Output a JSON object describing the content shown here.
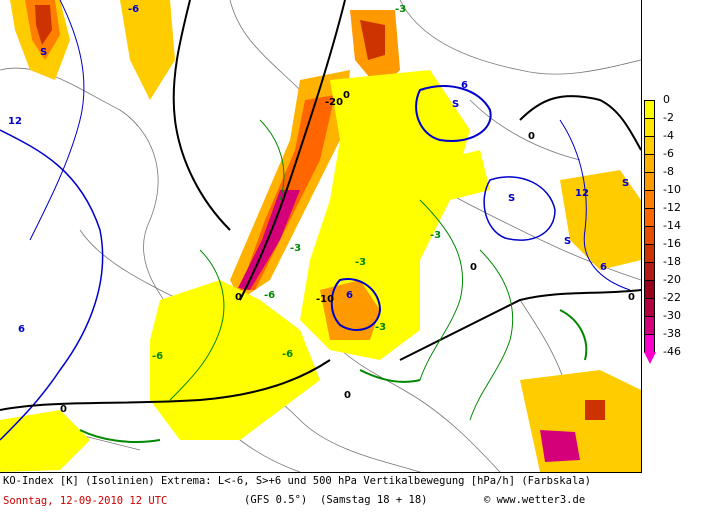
{
  "caption": {
    "line1": "KO-Index [K] (Isolinien) Extrema: L<-6, S>+6 und 500 hPa Vertikalbewegung [hPa/h] (Farbskala)",
    "date": "Sonntag, 12-09-2010  12 UTC",
    "model": "(GFS 0.5°)",
    "run": "(Samstag 18 + 18)",
    "credit": "© www.wetter3.de"
  },
  "legend": {
    "labels": [
      "0",
      "-2",
      "-4",
      "-6",
      "-8",
      "-10",
      "-12",
      "-14",
      "-16",
      "-18",
      "-20",
      "-22",
      "-30",
      "-38",
      "-46"
    ],
    "colors": [
      "#ffff00",
      "#ffe600",
      "#ffcc00",
      "#ffb300",
      "#ff9900",
      "#ff8000",
      "#ff6600",
      "#e64d00",
      "#cc3300",
      "#b31a1a",
      "#99001a",
      "#b30040",
      "#d4007a",
      "#ff00cc"
    ]
  },
  "map": {
    "isoline_labels": [
      {
        "text": "-6",
        "color": "#0000cc"
      },
      {
        "text": "S",
        "color": "#0000cc"
      },
      {
        "text": "12",
        "color": "#0000cc"
      },
      {
        "text": "6",
        "color": "#0000cc"
      },
      {
        "text": "0",
        "color": "#000000"
      },
      {
        "text": "-3",
        "color": "#008800"
      },
      {
        "text": "S",
        "color": "#0000cc"
      },
      {
        "text": "S",
        "color": "#0000cc"
      },
      {
        "text": "6",
        "color": "#0000cc"
      },
      {
        "text": "0",
        "color": "#000000"
      },
      {
        "text": "-6",
        "color": "#008800"
      },
      {
        "text": "-3",
        "color": "#008800"
      },
      {
        "text": "0",
        "color": "#000000"
      },
      {
        "text": "12",
        "color": "#0000cc"
      },
      {
        "text": "S",
        "color": "#0000cc"
      },
      {
        "text": "6",
        "color": "#0000cc"
      },
      {
        "text": "0",
        "color": "#000000"
      },
      {
        "text": "-6",
        "color": "#008800"
      },
      {
        "text": "0",
        "color": "#000000"
      },
      {
        "text": "6",
        "color": "#0000cc"
      },
      {
        "text": "-3",
        "color": "#008800"
      },
      {
        "text": "-6",
        "color": "#008800"
      },
      {
        "text": "S",
        "color": "#0000cc"
      },
      {
        "text": "-3",
        "color": "#008800"
      },
      {
        "text": "0",
        "color": "#000000"
      },
      {
        "text": "-10",
        "color": "#000000"
      },
      {
        "text": "-20",
        "color": "#000000"
      },
      {
        "text": "-3",
        "color": "#008800"
      },
      {
        "text": "0",
        "color": "#000000"
      }
    ]
  }
}
